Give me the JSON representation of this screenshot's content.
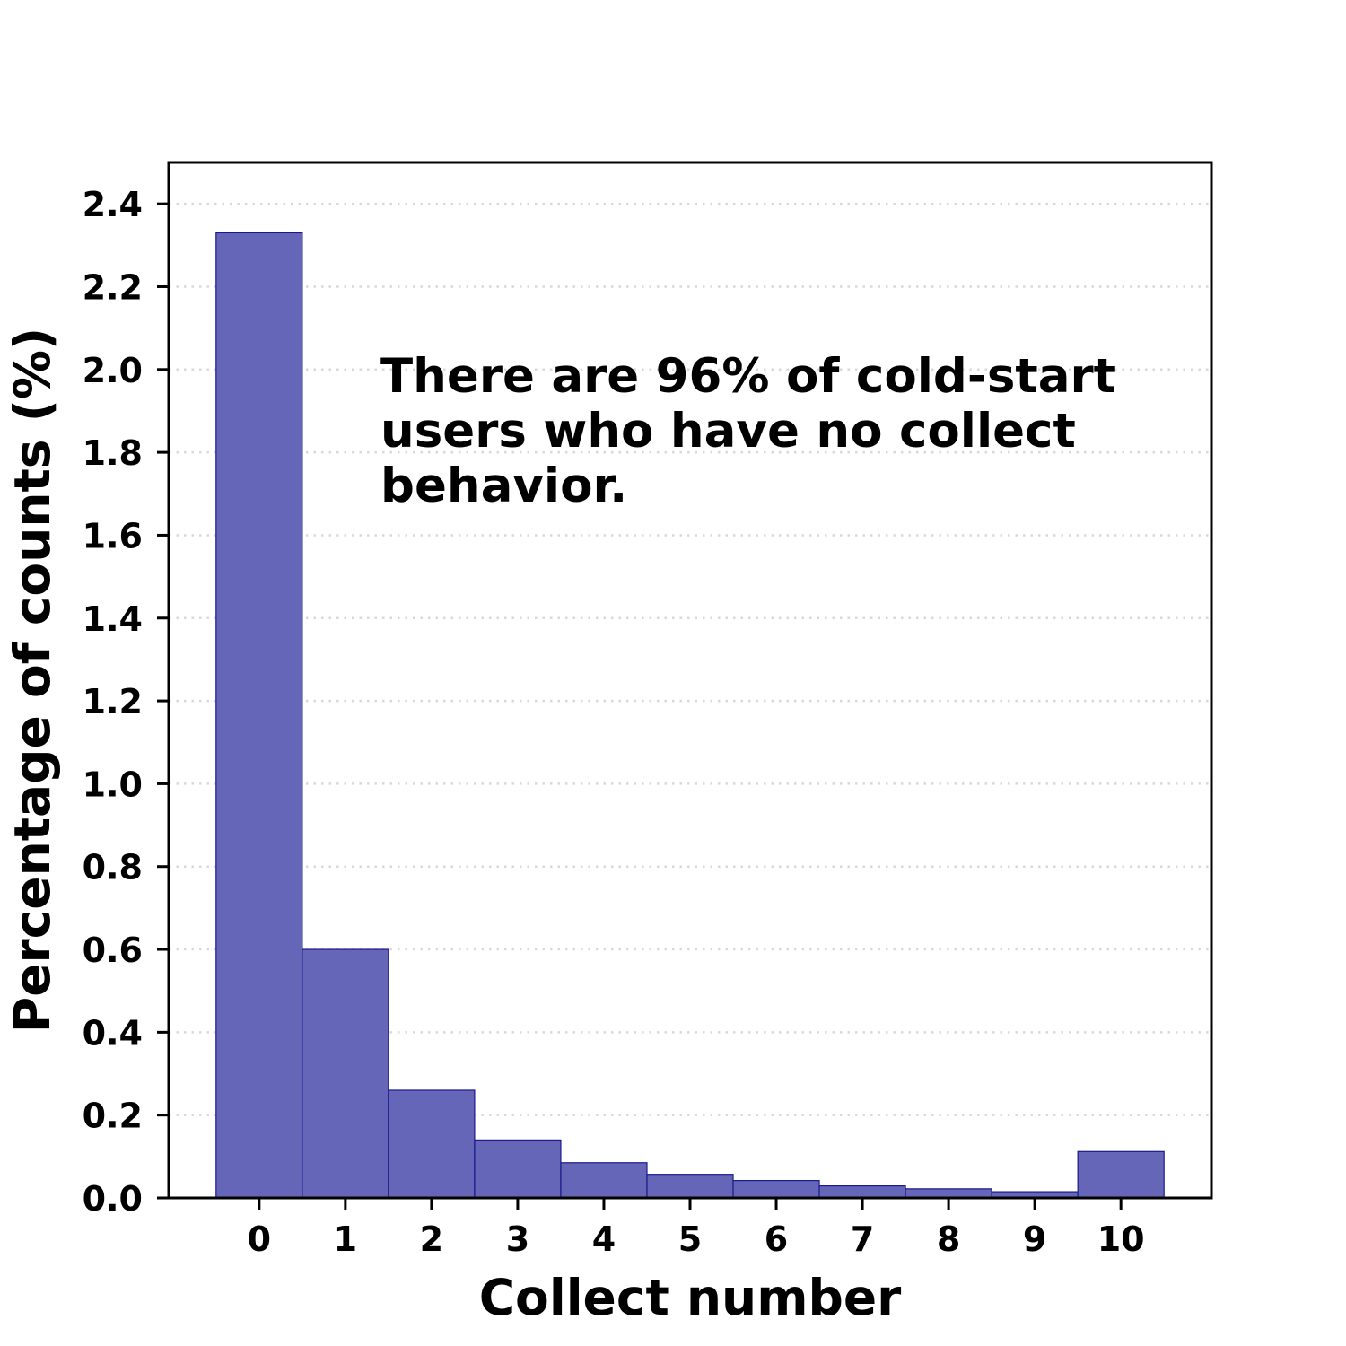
{
  "chart_data": {
    "type": "bar",
    "xlabel": "Collect number",
    "ylabel": "Percentage of counts (%)",
    "categories": [
      "0",
      "1",
      "2",
      "3",
      "4",
      "5",
      "6",
      "7",
      "8",
      "9",
      "10"
    ],
    "values": [
      2.33,
      0.6,
      0.26,
      0.14,
      0.085,
      0.057,
      0.042,
      0.029,
      0.022,
      0.015,
      0.112
    ],
    "ylim": [
      0,
      2.5
    ],
    "xlim": [
      -1.05,
      11.05
    ],
    "yticks": [
      "0.0",
      "0.2",
      "0.4",
      "0.6",
      "0.8",
      "1.0",
      "1.2",
      "1.4",
      "1.6",
      "1.8",
      "2.0",
      "2.2",
      "2.4"
    ],
    "grid": "horizontal dotted",
    "bar_color": "#6666b8",
    "bar_edge_color": "#1a1a8c",
    "annotation": {
      "lines": [
        "There are 96% of cold-start",
        "users who have no collect",
        "behavior."
      ]
    }
  }
}
